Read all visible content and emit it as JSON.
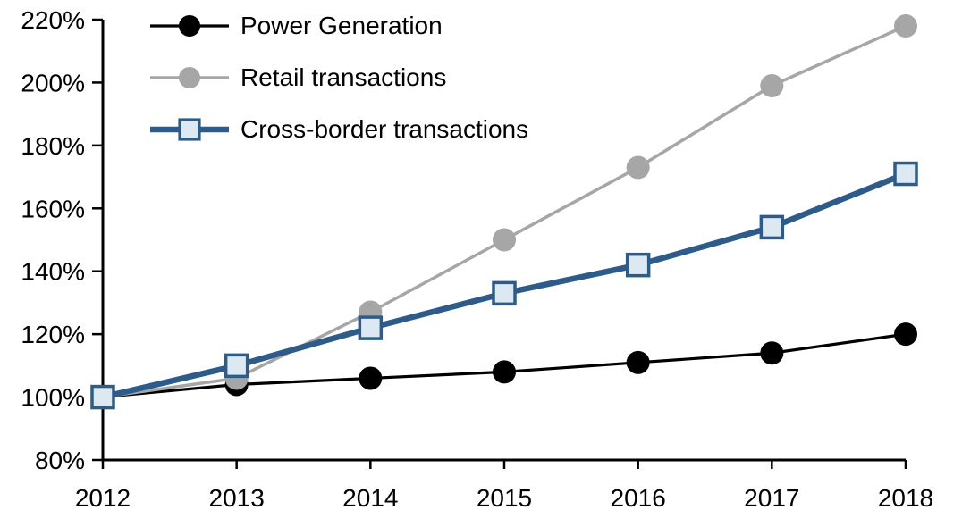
{
  "chart_data": {
    "type": "line",
    "title": "",
    "xlabel": "",
    "ylabel": "",
    "grid": false,
    "legend_position": "top-left",
    "x_axis": {
      "categories": [
        "2012",
        "2013",
        "2014",
        "2015",
        "2016",
        "2017",
        "2018"
      ]
    },
    "y_axis": {
      "min": 80,
      "max": 220,
      "step": 20,
      "tick_values": [
        80,
        100,
        120,
        140,
        160,
        180,
        200,
        220
      ],
      "tick_labels": [
        "80%",
        "100%",
        "120%",
        "140%",
        "160%",
        "180%",
        "200%",
        "220%"
      ],
      "format": "percent"
    },
    "series": [
      {
        "name": "Power Generation",
        "marker": "circle",
        "color": "#000000",
        "marker_fill": "#000000",
        "values": [
          100,
          104,
          106,
          108,
          111,
          114,
          120
        ]
      },
      {
        "name": "Retail transactions",
        "marker": "circle",
        "color": "#a6a6a6",
        "marker_fill": "#a6a6a6",
        "values": [
          100,
          106,
          127,
          150,
          173,
          199,
          218
        ]
      },
      {
        "name": "Cross-border transactions",
        "marker": "square",
        "color": "#2e5c8a",
        "marker_fill": "#dce8f2",
        "values": [
          100,
          110,
          122,
          133,
          142,
          154,
          171
        ]
      }
    ],
    "axis_color": "#000000"
  }
}
